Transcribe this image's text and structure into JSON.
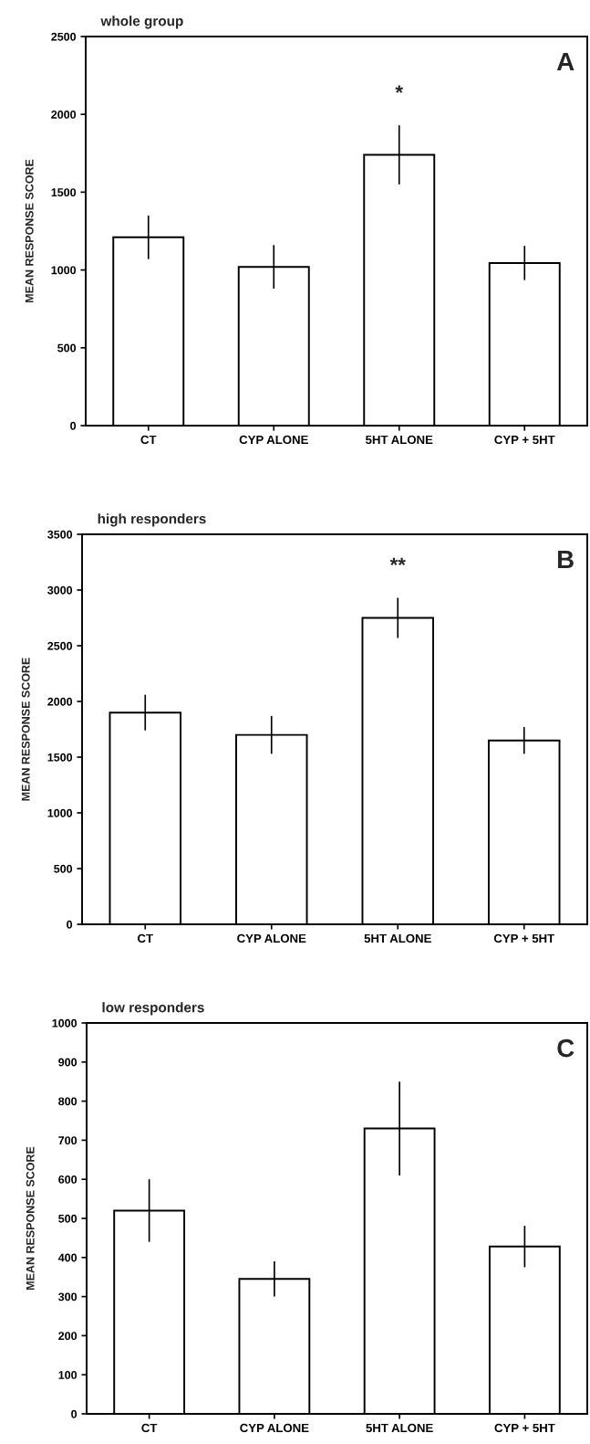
{
  "chart_data": [
    {
      "type": "bar",
      "title": "whole group",
      "ylabel": "MEAN RESPONSE SCORE",
      "categories": [
        "CT",
        "CYP ALONE",
        "5HT ALONE",
        "CYP + 5HT"
      ],
      "values": [
        1210,
        1020,
        1740,
        1045
      ],
      "errors": [
        140,
        140,
        190,
        110
      ],
      "colors": [
        "#ffffff",
        "#ffffff",
        "#ffffff",
        "#ffffff"
      ],
      "ylim": [
        0,
        2500
      ],
      "yticks": [
        0,
        500,
        1000,
        1500,
        2000,
        2500
      ],
      "grid": false,
      "annotations": [
        "A",
        "*"
      ]
    },
    {
      "type": "bar",
      "title": "high responders",
      "ylabel": "MEAN RESPONSE SCORE",
      "categories": [
        "CT",
        "CYP ALONE",
        "5HT ALONE",
        "CYP + 5HT"
      ],
      "values": [
        1900,
        1700,
        2750,
        1650
      ],
      "errors": [
        160,
        170,
        180,
        120
      ],
      "colors": [
        "#ffffff",
        "#ffffff",
        "#ffffff",
        "#ffffff"
      ],
      "ylim": [
        0,
        3500
      ],
      "yticks": [
        0,
        500,
        1000,
        1500,
        2000,
        2500,
        3000,
        3500
      ],
      "grid": false,
      "annotations": [
        "B",
        "**"
      ]
    },
    {
      "type": "bar",
      "title": "low responders",
      "ylabel": "MEAN RESPONSE SCORE",
      "categories": [
        "CT",
        "CYP ALONE",
        "5HT ALONE",
        "CYP + 5HT"
      ],
      "values": [
        520,
        345,
        730,
        428
      ],
      "errors": [
        80,
        45,
        120,
        53
      ],
      "colors": [
        "#ffffff",
        "#ffffff",
        "#ffffff",
        "#ffffff"
      ],
      "ylim": [
        0,
        1000
      ],
      "yticks": [
        0,
        100,
        200,
        300,
        400,
        500,
        600,
        700,
        800,
        900,
        1000
      ],
      "grid": false,
      "annotations": [
        "C"
      ]
    }
  ]
}
